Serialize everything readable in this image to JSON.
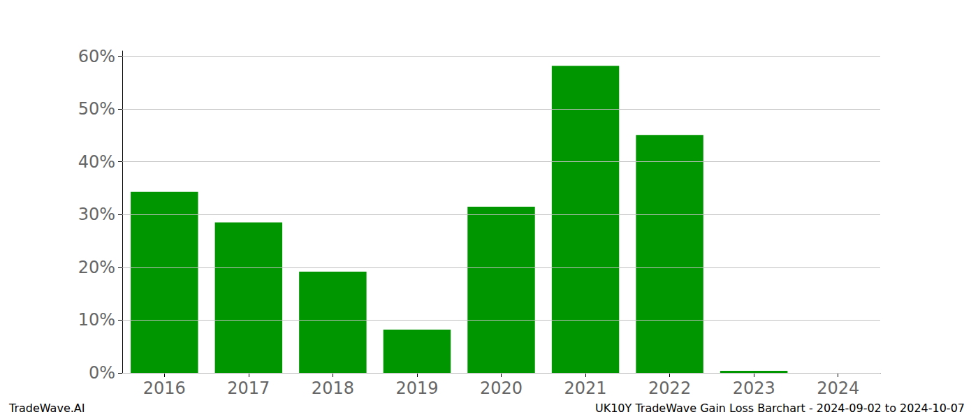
{
  "chart_data": {
    "type": "bar",
    "title": "UK10Y TradeWave Gain Loss Barchart - 2024-09-02 to 2024-10-07",
    "annotations": [
      "TradeWave.AI"
    ],
    "categories": [
      "2016",
      "2017",
      "2018",
      "2019",
      "2020",
      "2021",
      "2022",
      "2023",
      "2024"
    ],
    "values": [
      34.3,
      28.5,
      19.2,
      8.2,
      31.5,
      58.2,
      45.1,
      0.4,
      0
    ],
    "color": "#009600",
    "ylim": [
      0,
      61
    ],
    "yticks": [
      {
        "value": 0,
        "label": "0%"
      },
      {
        "value": 10,
        "label": "10%"
      },
      {
        "value": 20,
        "label": "20%"
      },
      {
        "value": 30,
        "label": "30%"
      },
      {
        "value": 40,
        "label": "40%"
      },
      {
        "value": 50,
        "label": "50%"
      },
      {
        "value": 60,
        "label": "60%"
      }
    ],
    "grid": true
  }
}
